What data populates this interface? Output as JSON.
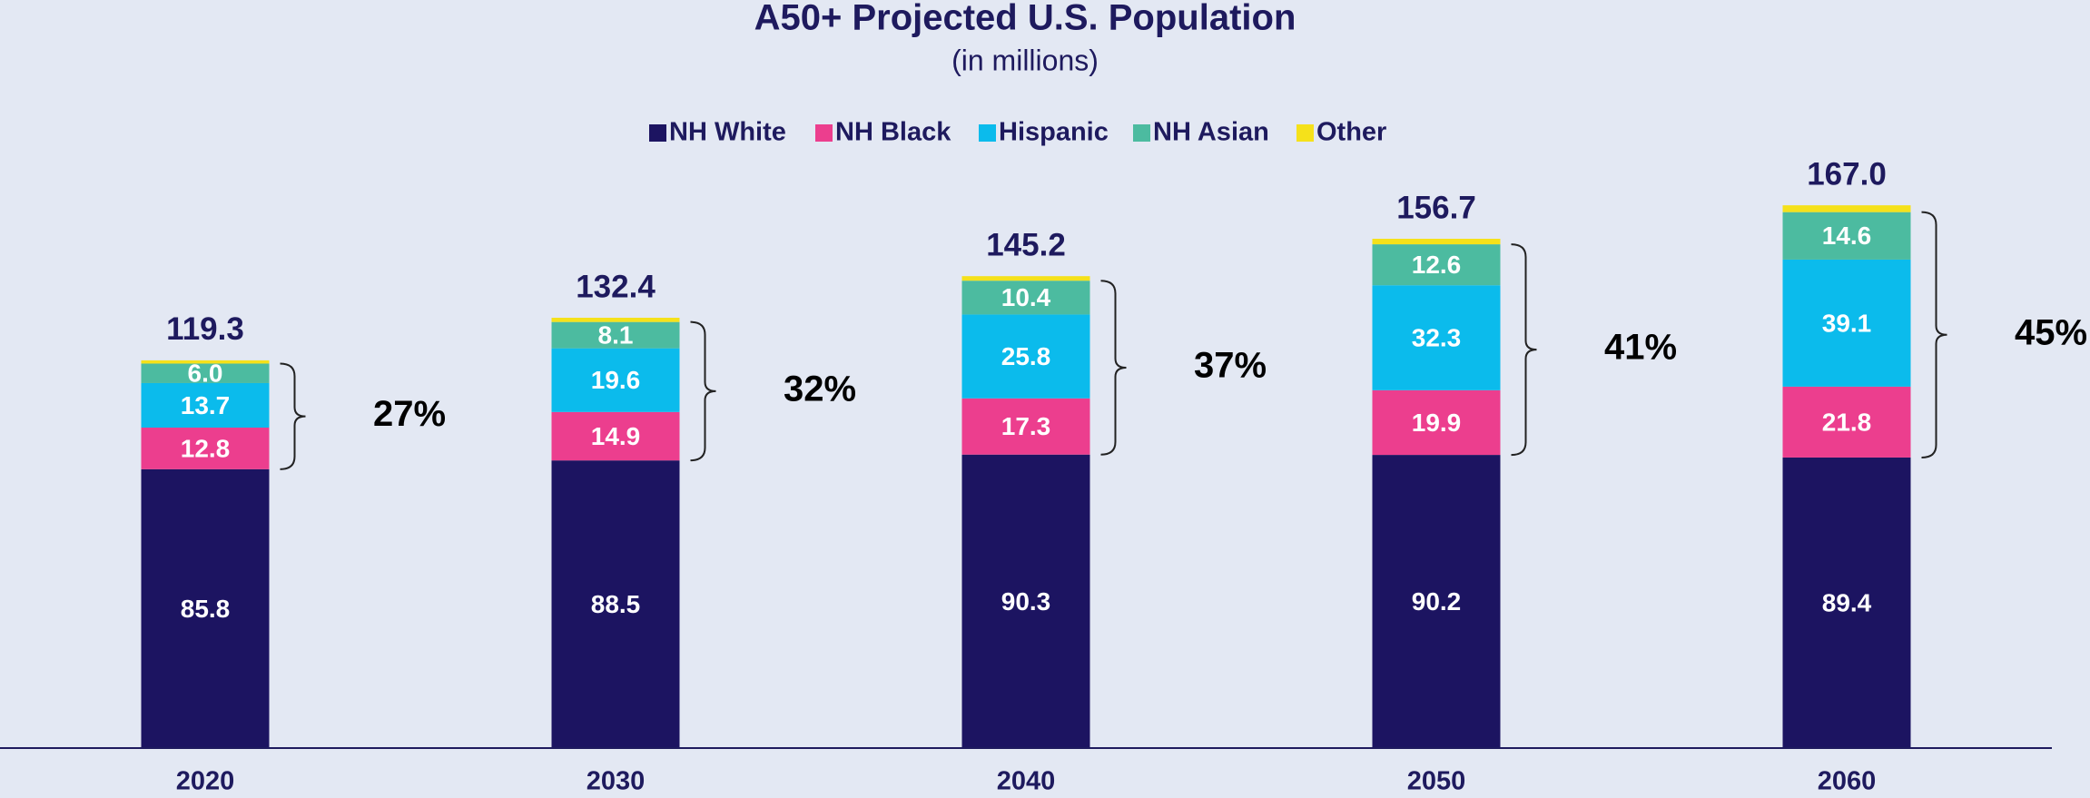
{
  "chart_data": {
    "type": "stacked_bar",
    "title": "A50+ Projected U.S. Population",
    "subtitle": "(in millions)",
    "categories": [
      "2020",
      "2030",
      "2040",
      "2050",
      "2060"
    ],
    "series": [
      {
        "name": "NH White",
        "color": "#1c1461",
        "values": [
          85.8,
          88.5,
          90.3,
          90.2,
          89.4
        ],
        "value_labels": [
          "85.8",
          "88.5",
          "90.3",
          "90.2",
          "89.4"
        ]
      },
      {
        "name": "NH Black",
        "color": "#ec3e8e",
        "values": [
          12.8,
          14.9,
          17.3,
          19.9,
          21.8
        ],
        "value_labels": [
          "12.8",
          "14.9",
          "17.3",
          "19.9",
          "21.8"
        ]
      },
      {
        "name": "Hispanic",
        "color": "#0bbbec",
        "values": [
          13.7,
          19.6,
          25.8,
          32.3,
          39.1
        ],
        "value_labels": [
          "13.7",
          "19.6",
          "25.8",
          "32.3",
          "39.1"
        ]
      },
      {
        "name": "NH Asian",
        "color": "#4cbba0",
        "values": [
          6.0,
          8.1,
          10.4,
          12.6,
          14.6
        ],
        "value_labels": [
          "6.0",
          "8.1",
          "10.4",
          "12.6",
          "14.6"
        ]
      },
      {
        "name": "Other",
        "color": "#f5e11a",
        "values": [
          1.0,
          1.3,
          1.4,
          1.7,
          2.1
        ]
      }
    ],
    "totals": {
      "values": [
        119.3,
        132.4,
        145.2,
        156.7,
        167.0
      ],
      "value_labels": [
        "119.3",
        "132.4",
        "145.2",
        "156.7",
        "167.0"
      ]
    },
    "annotations": [
      "27%",
      "32%",
      "37%",
      "41%",
      "45%"
    ],
    "ylim": [
      0,
      200
    ],
    "legend": "top"
  }
}
